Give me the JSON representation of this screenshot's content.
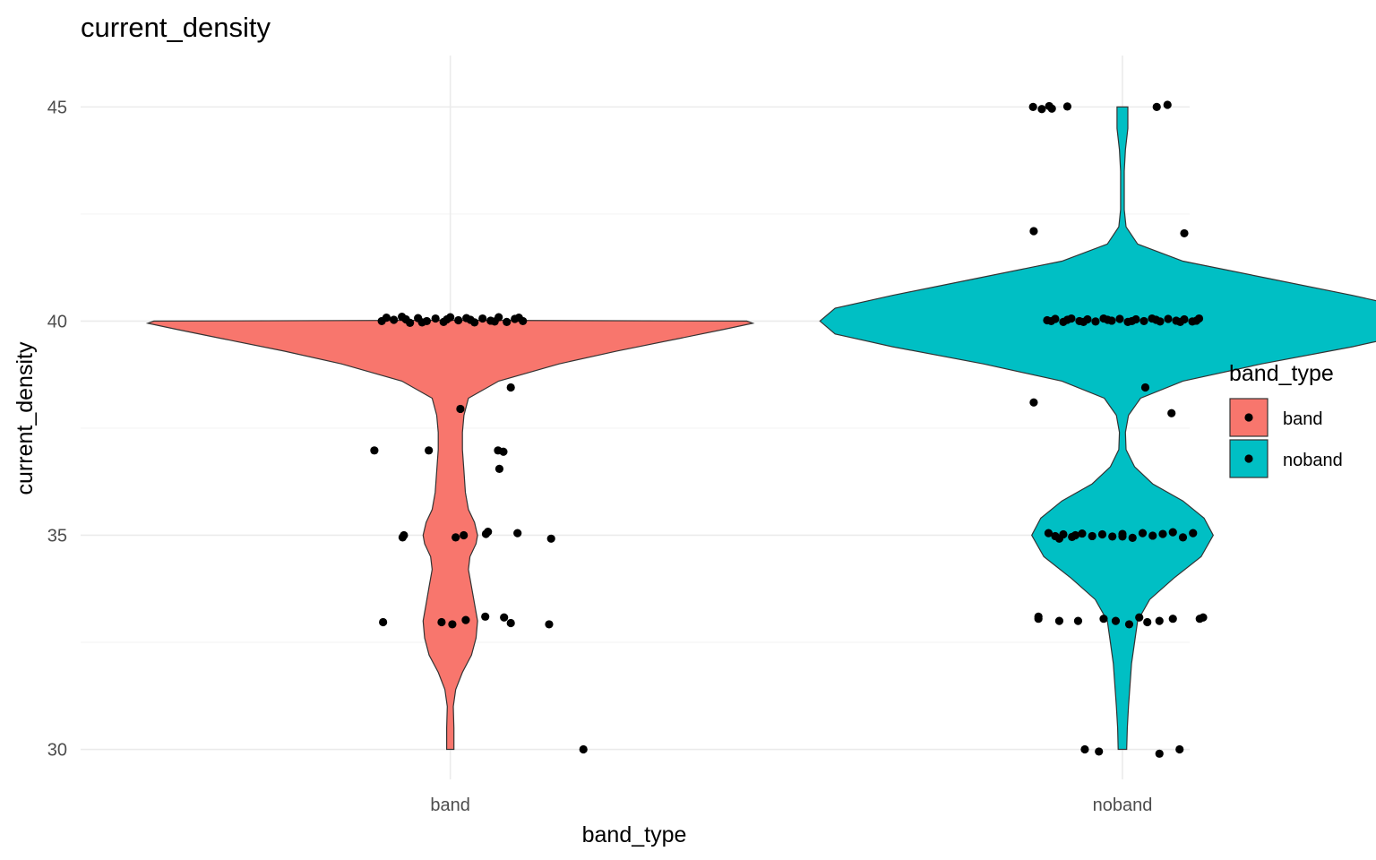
{
  "chart_data": {
    "type": "violin",
    "title": "current_density",
    "xlabel": "band_type",
    "ylabel": "current_density",
    "categories": [
      "band",
      "noband"
    ],
    "ylim": [
      29.3,
      46.2
    ],
    "y_ticks": [
      30,
      35,
      40,
      45
    ],
    "y_minor_ticks": [
      32.5,
      37.5,
      42.5
    ],
    "grid": true,
    "legend": {
      "title": "band_type",
      "position": "right",
      "entries": [
        {
          "label": "band",
          "color": "#F8766D"
        },
        {
          "label": "noband",
          "color": "#00BFC4"
        }
      ]
    },
    "series": [
      {
        "name": "band",
        "color": "#F8766D",
        "violin_profile": [
          [
            30.0,
            0.012
          ],
          [
            30.5,
            0.012
          ],
          [
            31.0,
            0.01
          ],
          [
            31.4,
            0.018
          ],
          [
            31.8,
            0.04
          ],
          [
            32.2,
            0.07
          ],
          [
            32.6,
            0.085
          ],
          [
            33.0,
            0.09
          ],
          [
            33.4,
            0.08
          ],
          [
            33.8,
            0.07
          ],
          [
            34.2,
            0.06
          ],
          [
            34.5,
            0.065
          ],
          [
            34.8,
            0.085
          ],
          [
            35.0,
            0.09
          ],
          [
            35.3,
            0.08
          ],
          [
            35.6,
            0.06
          ],
          [
            36.0,
            0.05
          ],
          [
            36.5,
            0.045
          ],
          [
            37.0,
            0.04
          ],
          [
            37.4,
            0.04
          ],
          [
            37.8,
            0.045
          ],
          [
            38.2,
            0.06
          ],
          [
            38.6,
            0.16
          ],
          [
            39.0,
            0.36
          ],
          [
            39.3,
            0.55
          ],
          [
            39.6,
            0.76
          ],
          [
            39.8,
            0.9
          ],
          [
            39.95,
            1.0
          ],
          [
            40.0,
            0.98
          ],
          [
            40.02,
            0.0
          ]
        ],
        "points": [
          {
            "x": 0.905,
            "y": 40.08
          },
          {
            "x": 0.916,
            "y": 40.03
          },
          {
            "x": 0.928,
            "y": 40.1
          },
          {
            "x": 0.94,
            "y": 39.96
          },
          {
            "x": 0.952,
            "y": 40.07
          },
          {
            "x": 0.965,
            "y": 40.0
          },
          {
            "x": 0.978,
            "y": 40.06
          },
          {
            "x": 0.99,
            "y": 39.98
          },
          {
            "x": 1.0,
            "y": 40.09
          },
          {
            "x": 1.012,
            "y": 40.02
          },
          {
            "x": 1.024,
            "y": 40.07
          },
          {
            "x": 1.036,
            "y": 39.97
          },
          {
            "x": 1.048,
            "y": 40.06
          },
          {
            "x": 1.06,
            "y": 40.01
          },
          {
            "x": 1.072,
            "y": 40.09
          },
          {
            "x": 1.084,
            "y": 39.98
          },
          {
            "x": 1.096,
            "y": 40.05
          },
          {
            "x": 1.108,
            "y": 40.0
          },
          {
            "x": 0.898,
            "y": 40.0
          },
          {
            "x": 0.934,
            "y": 40.04
          },
          {
            "x": 0.958,
            "y": 39.97
          },
          {
            "x": 0.995,
            "y": 40.04
          },
          {
            "x": 1.03,
            "y": 40.03
          },
          {
            "x": 1.066,
            "y": 39.99
          },
          {
            "x": 1.102,
            "y": 40.08
          },
          {
            "x": 1.09,
            "y": 38.45
          },
          {
            "x": 1.015,
            "y": 37.95
          },
          {
            "x": 0.887,
            "y": 36.98
          },
          {
            "x": 0.968,
            "y": 36.98
          },
          {
            "x": 1.071,
            "y": 36.98
          },
          {
            "x": 1.079,
            "y": 36.95
          },
          {
            "x": 1.073,
            "y": 36.55
          },
          {
            "x": 0.929,
            "y": 34.95
          },
          {
            "x": 0.931,
            "y": 35.0
          },
          {
            "x": 1.008,
            "y": 34.95
          },
          {
            "x": 1.02,
            "y": 35.0
          },
          {
            "x": 1.053,
            "y": 35.03
          },
          {
            "x": 1.056,
            "y": 35.08
          },
          {
            "x": 1.1,
            "y": 35.05
          },
          {
            "x": 1.15,
            "y": 34.92
          },
          {
            "x": 0.9,
            "y": 32.97
          },
          {
            "x": 0.987,
            "y": 32.97
          },
          {
            "x": 1.003,
            "y": 32.92
          },
          {
            "x": 1.023,
            "y": 33.02
          },
          {
            "x": 1.052,
            "y": 33.1
          },
          {
            "x": 1.08,
            "y": 33.08
          },
          {
            "x": 1.09,
            "y": 32.95
          },
          {
            "x": 1.147,
            "y": 32.92
          },
          {
            "x": 1.198,
            "y": 30.0
          }
        ]
      },
      {
        "name": "noband",
        "color": "#00BFC4",
        "violin_profile": [
          [
            30.0,
            0.014
          ],
          [
            30.5,
            0.016
          ],
          [
            31.0,
            0.02
          ],
          [
            31.5,
            0.025
          ],
          [
            32.0,
            0.03
          ],
          [
            32.5,
            0.04
          ],
          [
            33.0,
            0.05
          ],
          [
            33.5,
            0.09
          ],
          [
            34.0,
            0.17
          ],
          [
            34.5,
            0.26
          ],
          [
            35.0,
            0.3
          ],
          [
            35.4,
            0.27
          ],
          [
            35.8,
            0.2
          ],
          [
            36.2,
            0.1
          ],
          [
            36.6,
            0.04
          ],
          [
            37.0,
            0.012
          ],
          [
            37.4,
            0.01
          ],
          [
            37.8,
            0.02
          ],
          [
            38.2,
            0.06
          ],
          [
            38.6,
            0.2
          ],
          [
            39.0,
            0.46
          ],
          [
            39.4,
            0.76
          ],
          [
            39.7,
            0.95
          ],
          [
            40.0,
            1.0
          ],
          [
            40.3,
            0.95
          ],
          [
            40.6,
            0.76
          ],
          [
            41.0,
            0.48
          ],
          [
            41.4,
            0.2
          ],
          [
            41.8,
            0.05
          ],
          [
            42.2,
            0.012
          ],
          [
            42.6,
            0.006
          ],
          [
            43.0,
            0.006
          ],
          [
            43.5,
            0.006
          ],
          [
            44.0,
            0.01
          ],
          [
            44.5,
            0.018
          ],
          [
            45.0,
            0.018
          ]
        ],
        "points": [
          {
            "x": 1.888,
            "y": 40.02
          },
          {
            "x": 1.9,
            "y": 40.05
          },
          {
            "x": 1.912,
            "y": 39.98
          },
          {
            "x": 1.924,
            "y": 40.06
          },
          {
            "x": 1.936,
            "y": 40.0
          },
          {
            "x": 1.948,
            "y": 40.04
          },
          {
            "x": 1.96,
            "y": 39.99
          },
          {
            "x": 1.972,
            "y": 40.06
          },
          {
            "x": 1.984,
            "y": 40.01
          },
          {
            "x": 1.996,
            "y": 40.05
          },
          {
            "x": 2.008,
            "y": 39.98
          },
          {
            "x": 2.02,
            "y": 40.04
          },
          {
            "x": 2.032,
            "y": 40.0
          },
          {
            "x": 2.044,
            "y": 40.06
          },
          {
            "x": 2.056,
            "y": 39.99
          },
          {
            "x": 2.068,
            "y": 40.05
          },
          {
            "x": 2.08,
            "y": 40.01
          },
          {
            "x": 2.092,
            "y": 40.04
          },
          {
            "x": 2.104,
            "y": 39.99
          },
          {
            "x": 2.114,
            "y": 40.06
          },
          {
            "x": 1.894,
            "y": 40.0
          },
          {
            "x": 1.918,
            "y": 40.03
          },
          {
            "x": 1.942,
            "y": 39.98
          },
          {
            "x": 1.978,
            "y": 40.03
          },
          {
            "x": 2.014,
            "y": 40.0
          },
          {
            "x": 2.05,
            "y": 40.03
          },
          {
            "x": 2.086,
            "y": 39.98
          },
          {
            "x": 2.11,
            "y": 40.01
          },
          {
            "x": 1.89,
            "y": 35.05
          },
          {
            "x": 1.9,
            "y": 34.98
          },
          {
            "x": 1.912,
            "y": 35.02
          },
          {
            "x": 1.925,
            "y": 34.96
          },
          {
            "x": 1.94,
            "y": 35.04
          },
          {
            "x": 1.955,
            "y": 34.98
          },
          {
            "x": 1.97,
            "y": 35.02
          },
          {
            "x": 1.985,
            "y": 34.97
          },
          {
            "x": 2.0,
            "y": 35.03
          },
          {
            "x": 2.015,
            "y": 34.94
          },
          {
            "x": 2.03,
            "y": 35.05
          },
          {
            "x": 2.045,
            "y": 34.99
          },
          {
            "x": 2.06,
            "y": 35.03
          },
          {
            "x": 2.075,
            "y": 35.07
          },
          {
            "x": 2.09,
            "y": 34.95
          },
          {
            "x": 2.105,
            "y": 35.05
          },
          {
            "x": 1.906,
            "y": 34.92
          },
          {
            "x": 1.93,
            "y": 35.0
          },
          {
            "x": 2.0,
            "y": 34.97
          },
          {
            "x": 1.867,
            "y": 45.0
          },
          {
            "x": 1.88,
            "y": 44.95
          },
          {
            "x": 1.891,
            "y": 45.02
          },
          {
            "x": 1.895,
            "y": 44.96
          },
          {
            "x": 1.918,
            "y": 45.01
          },
          {
            "x": 2.051,
            "y": 45.0
          },
          {
            "x": 2.067,
            "y": 45.05
          },
          {
            "x": 1.868,
            "y": 42.1
          },
          {
            "x": 2.092,
            "y": 42.05
          },
          {
            "x": 1.868,
            "y": 38.1
          },
          {
            "x": 2.034,
            "y": 38.45
          },
          {
            "x": 2.073,
            "y": 37.85
          },
          {
            "x": 1.875,
            "y": 33.05
          },
          {
            "x": 1.875,
            "y": 33.1
          },
          {
            "x": 1.906,
            "y": 33.0
          },
          {
            "x": 1.934,
            "y": 33.0
          },
          {
            "x": 1.972,
            "y": 33.05
          },
          {
            "x": 1.99,
            "y": 33.0
          },
          {
            "x": 2.01,
            "y": 32.92
          },
          {
            "x": 2.025,
            "y": 33.08
          },
          {
            "x": 2.037,
            "y": 32.97
          },
          {
            "x": 2.055,
            "y": 33.0
          },
          {
            "x": 2.075,
            "y": 33.05
          },
          {
            "x": 2.12,
            "y": 33.08
          },
          {
            "x": 2.115,
            "y": 33.05
          },
          {
            "x": 1.944,
            "y": 30.0
          },
          {
            "x": 1.965,
            "y": 29.95
          },
          {
            "x": 2.055,
            "y": 29.9
          },
          {
            "x": 2.085,
            "y": 30.0
          }
        ]
      }
    ]
  }
}
